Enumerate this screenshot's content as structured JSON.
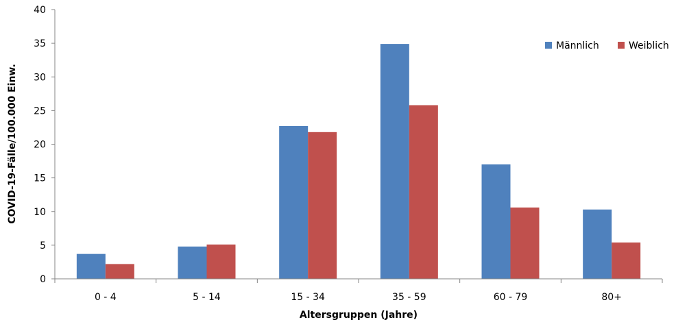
{
  "chart_data": {
    "type": "bar",
    "categories": [
      "0 - 4",
      "5 - 14",
      "15 - 34",
      "35 - 59",
      "60 - 79",
      "80+"
    ],
    "series": [
      {
        "name": "Männlich",
        "color": "#4F81BD",
        "values": [
          3.7,
          4.8,
          22.7,
          34.9,
          17.0,
          10.3
        ]
      },
      {
        "name": "Weiblich",
        "color": "#C0504D",
        "values": [
          2.2,
          5.1,
          21.8,
          25.8,
          10.6,
          5.4
        ]
      }
    ],
    "xlabel": "Altersgruppen (Jahre)",
    "ylabel": "COVID-19-Fälle/100.000 Einw.",
    "ylim": [
      0,
      40
    ],
    "yticks": [
      0,
      5,
      10,
      15,
      20,
      25,
      30,
      35,
      40
    ],
    "grid": false,
    "legend_position": "top-right"
  }
}
